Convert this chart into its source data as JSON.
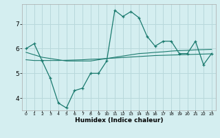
{
  "xlabel": "Humidex (Indice chaleur)",
  "ylabel": "",
  "bg_color": "#d4eef0",
  "grid_color": "#b8d8db",
  "line_color": "#1a7a6e",
  "x_values": [
    0,
    1,
    2,
    3,
    4,
    5,
    6,
    7,
    8,
    9,
    10,
    11,
    12,
    13,
    14,
    15,
    16,
    17,
    18,
    19,
    20,
    21,
    22,
    23
  ],
  "main_y": [
    6.0,
    6.2,
    5.5,
    4.8,
    3.8,
    3.6,
    4.3,
    4.4,
    5.0,
    5.0,
    5.5,
    7.55,
    7.3,
    7.5,
    7.25,
    6.5,
    6.1,
    6.3,
    6.3,
    5.8,
    5.8,
    6.3,
    5.35,
    5.8
  ],
  "trend1_y": [
    5.85,
    5.75,
    5.65,
    5.6,
    5.55,
    5.5,
    5.5,
    5.5,
    5.5,
    5.55,
    5.6,
    5.65,
    5.7,
    5.75,
    5.8,
    5.82,
    5.85,
    5.87,
    5.9,
    5.92,
    5.93,
    5.95,
    5.96,
    5.97
  ],
  "trend2_y": [
    5.55,
    5.52,
    5.52,
    5.52,
    5.52,
    5.53,
    5.54,
    5.55,
    5.57,
    5.58,
    5.6,
    5.62,
    5.64,
    5.66,
    5.68,
    5.7,
    5.72,
    5.73,
    5.74,
    5.75,
    5.76,
    5.77,
    5.78,
    5.79
  ],
  "ylim": [
    3.5,
    7.8
  ],
  "yticks": [
    4,
    5,
    6,
    7
  ],
  "xlim": [
    -0.5,
    23.5
  ]
}
